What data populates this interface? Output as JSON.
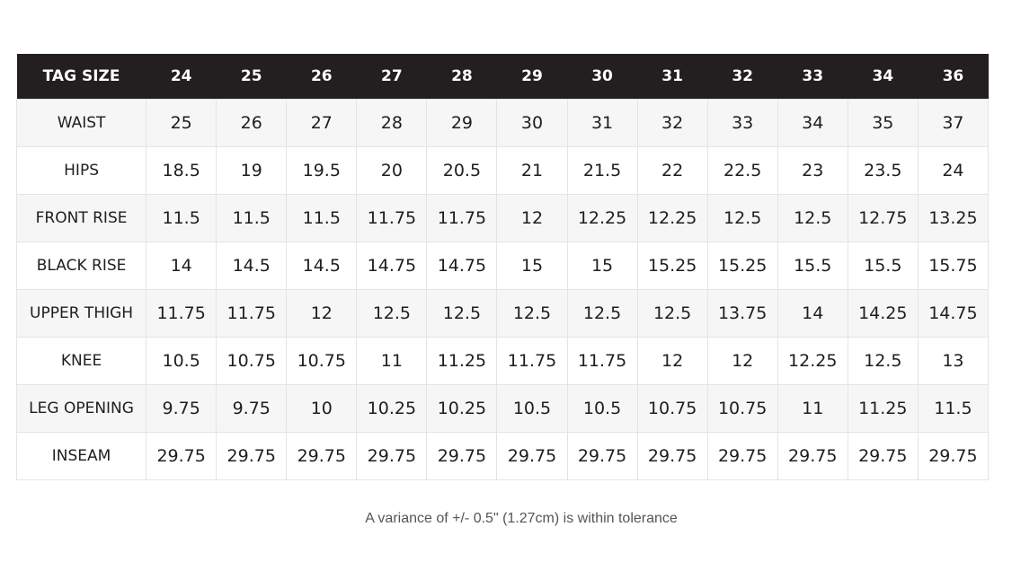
{
  "table": {
    "header": [
      "TAG SIZE",
      "24",
      "25",
      "26",
      "27",
      "28",
      "29",
      "30",
      "31",
      "32",
      "33",
      "34",
      "36"
    ],
    "rows": [
      {
        "label": "WAIST",
        "values": [
          "25",
          "26",
          "27",
          "28",
          "29",
          "30",
          "31",
          "32",
          "33",
          "34",
          "35",
          "37"
        ]
      },
      {
        "label": "HIPS",
        "values": [
          "18.5",
          "19",
          "19.5",
          "20",
          "20.5",
          "21",
          "21.5",
          "22",
          "22.5",
          "23",
          "23.5",
          "24"
        ]
      },
      {
        "label": "FRONT RISE",
        "values": [
          "11.5",
          "11.5",
          "11.5",
          "11.75",
          "11.75",
          "12",
          "12.25",
          "12.25",
          "12.5",
          "12.5",
          "12.75",
          "13.25"
        ]
      },
      {
        "label": "BLACK RISE",
        "values": [
          "14",
          "14.5",
          "14.5",
          "14.75",
          "14.75",
          "15",
          "15",
          "15.25",
          "15.25",
          "15.5",
          "15.5",
          "15.75"
        ]
      },
      {
        "label": "UPPER THIGH",
        "values": [
          "11.75",
          "11.75",
          "12",
          "12.5",
          "12.5",
          "12.5",
          "12.5",
          "12.5",
          "13.75",
          "14",
          "14.25",
          "14.75"
        ]
      },
      {
        "label": "KNEE",
        "values": [
          "10.5",
          "10.75",
          "10.75",
          "11",
          "11.25",
          "11.75",
          "11.75",
          "12",
          "12",
          "12.25",
          "12.5",
          "13"
        ]
      },
      {
        "label": "LEG OPENING",
        "values": [
          "9.75",
          "9.75",
          "10",
          "10.25",
          "10.25",
          "10.5",
          "10.5",
          "10.75",
          "10.75",
          "11",
          "11.25",
          "11.5"
        ]
      },
      {
        "label": "INSEAM",
        "values": [
          "29.75",
          "29.75",
          "29.75",
          "29.75",
          "29.75",
          "29.75",
          "29.75",
          "29.75",
          "29.75",
          "29.75",
          "29.75",
          "29.75"
        ]
      }
    ]
  },
  "note": "A variance of +/- 0.5\" (1.27cm) is within tolerance",
  "colors": {
    "header_background": "#231f20",
    "header_text": "#ffffff",
    "stripe_background": "#f6f6f6",
    "border": "#e4e4e4"
  }
}
